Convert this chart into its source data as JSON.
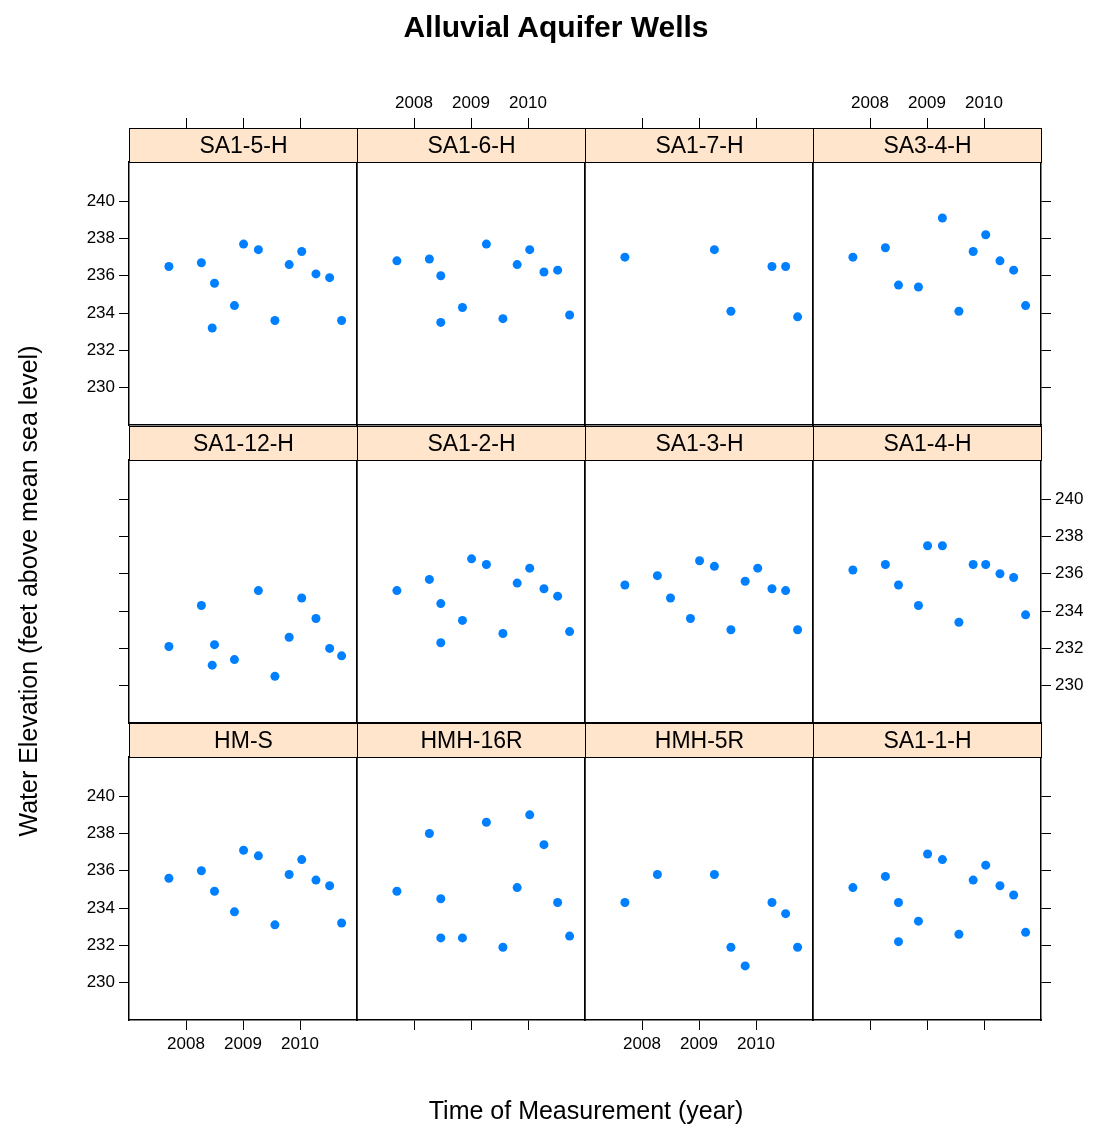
{
  "chart_data": [
    {
      "type": "other",
      "title": "Alluvial Aquifer Wells"
    },
    {
      "type": "scatter",
      "subtitle": "SA1-5-H",
      "x": [
        2007.7,
        2008.27,
        2008.46,
        2008.5,
        2008.85,
        2009.01,
        2009.27,
        2009.56,
        2009.81,
        2010.03,
        2010.28,
        2010.52,
        2010.73
      ],
      "values": [
        236.5,
        236.7,
        233.2,
        235.6,
        234.4,
        237.7,
        237.4,
        233.6,
        236.6,
        237.3,
        236.1,
        235.9,
        233.6
      ],
      "color": "#0080ff",
      "marker": "circle",
      "xlim": [
        2007,
        2011
      ],
      "ylim": [
        228,
        242.1
      ],
      "xticks": [
        2008,
        2009,
        2010
      ],
      "yticks": [
        230,
        232,
        234,
        236,
        238,
        240
      ],
      "tick_labels": "y"
    },
    {
      "type": "scatter",
      "subtitle": "SA1-6-H",
      "x": [
        2007.7,
        2008.27,
        2008.47,
        2008.47,
        2008.85,
        2009.27,
        2009.56,
        2009.81,
        2010.03,
        2010.28,
        2010.52,
        2010.73
      ],
      "values": [
        236.8,
        236.9,
        236.0,
        233.5,
        234.3,
        237.7,
        233.7,
        236.6,
        237.4,
        236.2,
        236.3,
        233.9
      ],
      "color": "#0080ff",
      "marker": "circle",
      "xlim": [
        2007,
        2011
      ],
      "ylim": [
        228,
        242.1
      ],
      "xticks": [
        2008,
        2009,
        2010
      ],
      "yticks": [
        230,
        232,
        234,
        236,
        238,
        240
      ],
      "tick_labels": "x"
    },
    {
      "type": "scatter",
      "subtitle": "SA1-7-H",
      "x": [
        2007.7,
        2009.27,
        2009.56,
        2010.28,
        2010.52,
        2010.73
      ],
      "values": [
        237.0,
        237.4,
        234.1,
        236.5,
        236.5,
        233.8
      ],
      "color": "#0080ff",
      "marker": "circle",
      "xlim": [
        2007,
        2011
      ],
      "ylim": [
        228,
        242.1
      ],
      "xticks": [
        2008,
        2009,
        2010
      ],
      "yticks": [
        230,
        232,
        234,
        236,
        238,
        240
      ],
      "tick_labels": false
    },
    {
      "type": "scatter",
      "subtitle": "SA3-4-H",
      "x": [
        2007.7,
        2008.27,
        2008.5,
        2008.85,
        2009.27,
        2009.56,
        2009.81,
        2010.03,
        2010.28,
        2010.52,
        2010.73
      ],
      "values": [
        237.0,
        237.5,
        235.5,
        235.4,
        239.1,
        234.1,
        237.3,
        238.2,
        236.8,
        236.3,
        234.4
      ],
      "color": "#0080ff",
      "marker": "circle",
      "xlim": [
        2007,
        2011
      ],
      "ylim": [
        228,
        242.1
      ],
      "xticks": [
        2008,
        2009,
        2010
      ],
      "yticks": [
        230,
        232,
        234,
        236,
        238,
        240
      ],
      "tick_labels": "x"
    },
    {
      "type": "scatter",
      "subtitle": "SA1-12-H",
      "ylabel": "Water Elevation (feet above mean sea level)",
      "x": [
        2007.7,
        2008.27,
        2008.46,
        2008.5,
        2008.85,
        2009.27,
        2009.56,
        2009.81,
        2010.03,
        2010.28,
        2010.52,
        2010.73
      ],
      "values": [
        232.1,
        234.3,
        231.1,
        232.2,
        231.4,
        235.1,
        230.5,
        232.6,
        234.7,
        233.6,
        232.0,
        231.6
      ],
      "color": "#0080ff",
      "marker": "circle",
      "xlim": [
        2007,
        2011
      ],
      "ylim": [
        228,
        242.1
      ],
      "xticks": [
        2008,
        2009,
        2010
      ],
      "yticks": [
        230,
        232,
        234,
        236,
        238,
        240
      ],
      "tick_labels": false
    },
    {
      "type": "scatter",
      "subtitle": "SA1-2-H",
      "x": [
        2007.7,
        2008.27,
        2008.47,
        2008.47,
        2008.85,
        2009.01,
        2009.27,
        2009.56,
        2009.81,
        2010.03,
        2010.28,
        2010.52,
        2010.73
      ],
      "values": [
        235.1,
        235.7,
        234.4,
        232.3,
        233.5,
        236.8,
        236.5,
        232.8,
        235.5,
        236.3,
        235.2,
        234.8,
        232.9
      ],
      "color": "#0080ff",
      "marker": "circle",
      "xlim": [
        2007,
        2011
      ],
      "ylim": [
        228,
        242.1
      ],
      "xticks": [
        2008,
        2009,
        2010
      ],
      "yticks": [
        230,
        232,
        234,
        236,
        238,
        240
      ],
      "tick_labels": false
    },
    {
      "type": "scatter",
      "subtitle": "SA1-3-H",
      "x": [
        2007.7,
        2008.27,
        2008.5,
        2008.85,
        2009.01,
        2009.27,
        2009.56,
        2009.81,
        2010.03,
        2010.28,
        2010.52,
        2010.73
      ],
      "values": [
        235.4,
        235.9,
        234.7,
        233.6,
        236.7,
        236.4,
        233.0,
        235.6,
        236.3,
        235.2,
        235.1,
        233.0
      ],
      "color": "#0080ff",
      "marker": "circle",
      "xlim": [
        2007,
        2011
      ],
      "ylim": [
        228,
        242.1
      ],
      "xticks": [
        2008,
        2009,
        2010
      ],
      "yticks": [
        230,
        232,
        234,
        236,
        238,
        240
      ],
      "tick_labels": false
    },
    {
      "type": "scatter",
      "subtitle": "SA1-4-H",
      "x": [
        2007.7,
        2008.27,
        2008.5,
        2008.85,
        2009.01,
        2009.27,
        2009.56,
        2009.81,
        2010.03,
        2010.28,
        2010.52,
        2010.73
      ],
      "values": [
        236.2,
        236.5,
        235.4,
        234.3,
        237.5,
        237.5,
        233.4,
        236.5,
        236.5,
        236.0,
        235.8,
        233.8
      ],
      "color": "#0080ff",
      "marker": "circle",
      "xlim": [
        2007,
        2011
      ],
      "ylim": [
        228,
        242.1
      ],
      "xticks": [
        2008,
        2009,
        2010
      ],
      "yticks": [
        230,
        232,
        234,
        236,
        238,
        240
      ],
      "tick_labels": "y"
    },
    {
      "type": "scatter",
      "subtitle": "HM-S",
      "x": [
        2007.7,
        2008.27,
        2008.5,
        2008.85,
        2009.01,
        2009.27,
        2009.56,
        2009.81,
        2010.03,
        2010.28,
        2010.52,
        2010.73
      ],
      "values": [
        235.6,
        236.0,
        234.9,
        233.8,
        237.1,
        236.8,
        233.1,
        235.8,
        236.6,
        235.5,
        235.2,
        233.2
      ],
      "color": "#0080ff",
      "marker": "circle",
      "xlim": [
        2007,
        2011
      ],
      "ylim": [
        228,
        242.1
      ],
      "xticks": [
        2008,
        2009,
        2010
      ],
      "yticks": [
        230,
        232,
        234,
        236,
        238,
        240
      ]
    },
    {
      "type": "scatter",
      "subtitle": "HMH-16R",
      "xlabel": "Time of Measurement (year)",
      "x": [
        2007.7,
        2008.27,
        2008.47,
        2008.47,
        2008.85,
        2009.27,
        2009.56,
        2009.81,
        2010.03,
        2010.28,
        2010.52,
        2010.73
      ],
      "values": [
        234.9,
        238.0,
        234.5,
        232.4,
        232.4,
        238.6,
        231.9,
        235.1,
        239.0,
        237.4,
        234.3,
        232.5
      ],
      "color": "#0080ff",
      "marker": "circle",
      "xlim": [
        2007,
        2011
      ],
      "ylim": [
        228,
        242.1
      ],
      "xticks": [
        2008,
        2009,
        2010
      ],
      "yticks": [
        230,
        232,
        234,
        236,
        238,
        240
      ],
      "tick_labels": false
    },
    {
      "type": "scatter",
      "subtitle": "HMH-5R",
      "x": [
        2007.7,
        2008.27,
        2009.27,
        2009.56,
        2009.81,
        2010.28,
        2010.52,
        2010.73
      ],
      "values": [
        234.3,
        235.8,
        235.8,
        231.9,
        230.9,
        234.3,
        233.7,
        231.9
      ],
      "color": "#0080ff",
      "marker": "circle",
      "xlim": [
        2007,
        2011
      ],
      "ylim": [
        228,
        242.1
      ],
      "xticks": [
        2008,
        2009,
        2010
      ],
      "yticks": [
        230,
        232,
        234,
        236,
        238,
        240
      ],
      "tick_labels": "x"
    },
    {
      "type": "scatter",
      "subtitle": "SA1-1-H",
      "x": [
        2007.7,
        2008.27,
        2008.5,
        2008.5,
        2008.85,
        2009.01,
        2009.27,
        2009.56,
        2009.81,
        2010.03,
        2010.28,
        2010.52,
        2010.73
      ],
      "values": [
        235.1,
        235.7,
        234.3,
        232.2,
        233.3,
        236.9,
        236.6,
        232.6,
        235.5,
        236.3,
        235.2,
        234.7,
        232.7
      ],
      "color": "#0080ff",
      "marker": "circle",
      "xlim": [
        2007,
        2011
      ],
      "ylim": [
        228,
        242.1
      ],
      "xticks": [
        2008,
        2009,
        2010
      ],
      "yticks": [
        230,
        232,
        234,
        236,
        238,
        240
      ],
      "tick_labels": false
    }
  ]
}
